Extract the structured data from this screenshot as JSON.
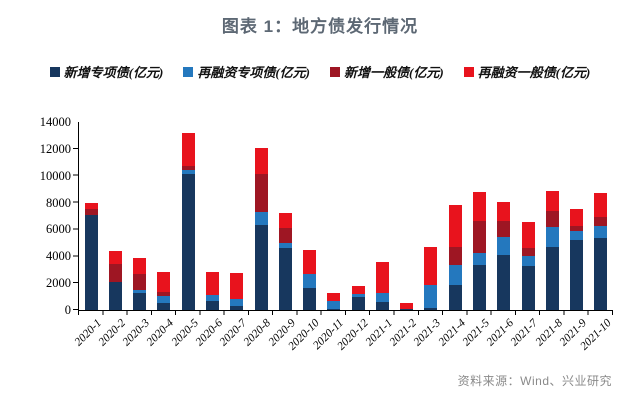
{
  "title": "图表 1：地方债发行情况",
  "source": "资料来源：Wind、兴业研究",
  "chart_data": {
    "type": "bar",
    "stacked": true,
    "title": "图表 1：地方债发行情况",
    "xlabel": "",
    "ylabel": "",
    "ylim": [
      0,
      14000
    ],
    "yticks": [
      0,
      2000,
      4000,
      6000,
      8000,
      10000,
      12000,
      14000
    ],
    "grid": false,
    "legend_position": "top",
    "categories": [
      "2020-1",
      "2020-2",
      "2020-3",
      "2020-4",
      "2020-5",
      "2020-6",
      "2020-7",
      "2020-8",
      "2020-9",
      "2020-10",
      "2020-11",
      "2020-12",
      "2021-1",
      "2021-2",
      "2021-3",
      "2021-4",
      "2021-5",
      "2021-6",
      "2021-7",
      "2021-8",
      "2021-9",
      "2021-10"
    ],
    "series": [
      {
        "name": "新增专项债(亿元)",
        "color": "#17375e",
        "values": [
          7050,
          2100,
          1300,
          500,
          10100,
          700,
          300,
          6300,
          4600,
          1650,
          100,
          950,
          600,
          100,
          150,
          1850,
          3350,
          4100,
          3300,
          4700,
          5200,
          5350
        ]
      },
      {
        "name": "再融资专项债(亿元)",
        "color": "#2478be",
        "values": [
          0,
          0,
          200,
          550,
          300,
          450,
          550,
          1000,
          400,
          1050,
          550,
          250,
          700,
          0,
          1750,
          1500,
          900,
          1350,
          700,
          1500,
          700,
          900
        ]
      },
      {
        "name": "新增一般债(亿元)",
        "color": "#9e1623",
        "values": [
          500,
          1300,
          1200,
          300,
          300,
          0,
          0,
          2800,
          1100,
          0,
          0,
          0,
          0,
          0,
          0,
          1350,
          2400,
          1200,
          650,
          1200,
          350,
          650
        ]
      },
      {
        "name": "再融资一般债(亿元)",
        "color": "#e8131d",
        "values": [
          400,
          1000,
          1200,
          1500,
          2500,
          1700,
          1900,
          2000,
          1150,
          1800,
          650,
          600,
          2300,
          450,
          2800,
          3150,
          2150,
          1400,
          1900,
          1500,
          1250,
          1800
        ]
      }
    ]
  }
}
